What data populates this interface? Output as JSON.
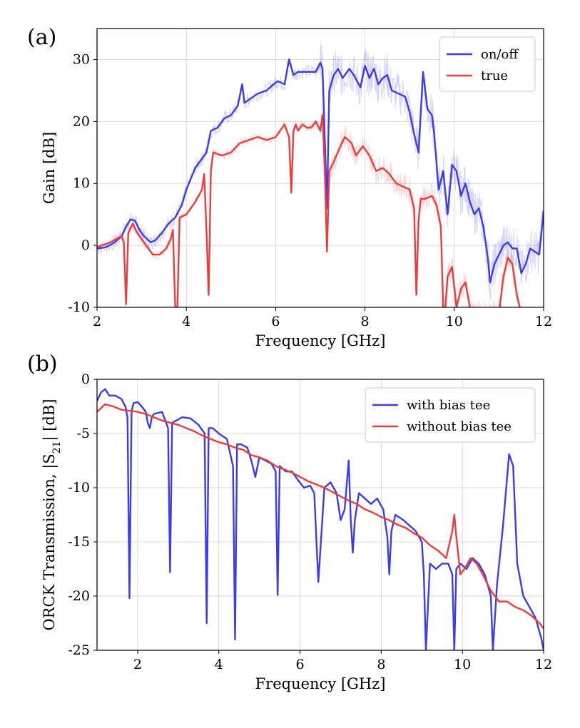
{
  "chart_data": [
    {
      "panel_label": "(a)",
      "type": "line",
      "title": "",
      "xlabel": "Frequency [GHz]",
      "ylabel": "Gain [dB]",
      "xlim": [
        2,
        12
      ],
      "ylim": [
        -10,
        35
      ],
      "xticks": [
        2,
        4,
        6,
        8,
        10,
        12
      ],
      "xtick_labels": [
        "2",
        "4",
        "6",
        "8",
        "10",
        "12"
      ],
      "yticks": [
        -10,
        0,
        10,
        20,
        30
      ],
      "ytick_labels": [
        "-10",
        "0",
        "10",
        "20",
        "30"
      ],
      "grid": true,
      "legend": "top-right",
      "series": [
        {
          "name": "on/off",
          "color": "#3b3bf0",
          "raw_noise": true,
          "x": [
            2.0,
            2.2,
            2.4,
            2.55,
            2.65,
            2.75,
            2.85,
            2.95,
            3.05,
            3.2,
            3.3,
            3.45,
            3.6,
            3.75,
            3.9,
            4.0,
            4.2,
            4.35,
            4.45,
            4.55,
            4.7,
            4.85,
            5.0,
            5.15,
            5.25,
            5.3,
            5.4,
            5.6,
            5.8,
            5.95,
            6.05,
            6.2,
            6.3,
            6.4,
            6.5,
            6.7,
            6.9,
            7.0,
            7.05,
            7.1,
            7.15,
            7.2,
            7.3,
            7.4,
            7.5,
            7.65,
            7.75,
            7.9,
            8.0,
            8.1,
            8.2,
            8.3,
            8.4,
            8.5,
            8.6,
            8.75,
            8.9,
            9.0,
            9.1,
            9.2,
            9.3,
            9.4,
            9.5,
            9.55,
            9.65,
            9.75,
            9.85,
            9.95,
            10.05,
            10.15,
            10.25,
            10.35,
            10.45,
            10.55,
            10.65,
            10.75,
            10.8,
            10.9,
            11.0,
            11.1,
            11.2,
            11.3,
            11.4,
            11.5,
            11.6,
            11.7,
            11.8,
            11.9,
            12.0
          ],
          "y": [
            -0.5,
            -0.3,
            0.5,
            1.5,
            3.0,
            4.2,
            4.0,
            2.5,
            1.5,
            0.5,
            0.8,
            2.0,
            3.5,
            4.5,
            6.5,
            9.0,
            12.5,
            14.0,
            15.0,
            18.5,
            19.0,
            20.5,
            21.0,
            22.5,
            26.0,
            23.0,
            23.5,
            24.5,
            25.0,
            26.0,
            26.5,
            26.0,
            30.0,
            27.5,
            28.0,
            28.0,
            28.0,
            29.5,
            28.5,
            17.0,
            6.0,
            25.0,
            27.5,
            28.5,
            27.0,
            28.5,
            27.5,
            25.5,
            29.0,
            27.0,
            28.5,
            26.0,
            27.0,
            27.5,
            25.0,
            24.5,
            24.0,
            21.5,
            18.0,
            15.0,
            28.0,
            22.0,
            21.0,
            18.0,
            9.0,
            12.0,
            5.0,
            13.0,
            12.0,
            8.0,
            10.0,
            7.0,
            5.0,
            6.0,
            3.0,
            -2.0,
            -6.0,
            -3.0,
            -1.5,
            0.0,
            0.5,
            -0.5,
            -0.5,
            -4.5,
            -3.0,
            -0.5,
            -1.0,
            -1.5,
            5.5
          ]
        },
        {
          "name": "true",
          "color": "#ee3b3b",
          "raw_noise": true,
          "x": [
            2.0,
            2.3,
            2.55,
            2.6,
            2.65,
            2.7,
            2.8,
            2.9,
            3.0,
            3.1,
            3.25,
            3.4,
            3.55,
            3.65,
            3.7,
            3.75,
            3.8,
            3.85,
            4.0,
            4.2,
            4.35,
            4.4,
            4.45,
            4.5,
            4.55,
            4.6,
            4.8,
            5.0,
            5.2,
            5.4,
            5.6,
            5.8,
            6.0,
            6.2,
            6.3,
            6.35,
            6.4,
            6.45,
            6.5,
            6.6,
            6.7,
            6.8,
            6.9,
            7.0,
            7.05,
            7.1,
            7.15,
            7.2,
            7.3,
            7.45,
            7.55,
            7.7,
            7.8,
            7.95,
            8.1,
            8.25,
            8.4,
            8.55,
            8.7,
            8.85,
            9.0,
            9.1,
            9.15,
            9.2,
            9.25,
            9.35,
            9.5,
            9.6,
            9.7,
            9.75,
            9.8,
            9.85,
            9.95,
            10.05,
            10.15,
            10.25,
            10.35,
            10.45,
            10.55,
            10.7,
            10.85,
            11.0,
            11.1,
            11.2,
            11.3,
            11.4,
            11.5
          ],
          "y": [
            -0.3,
            0.5,
            1.5,
            0.5,
            -9.5,
            2.0,
            3.5,
            2.0,
            1.0,
            0.0,
            -1.5,
            -1.5,
            -0.5,
            1.0,
            2.5,
            -10.0,
            -10.0,
            4.5,
            5.0,
            7.0,
            9.0,
            11.5,
            2.5,
            -8.0,
            12.0,
            15.0,
            14.5,
            15.0,
            16.5,
            17.0,
            17.5,
            17.0,
            17.5,
            19.5,
            17.5,
            8.5,
            18.5,
            19.5,
            18.5,
            19.5,
            19.0,
            19.0,
            20.0,
            18.5,
            21.0,
            12.0,
            -1.0,
            12.0,
            13.5,
            16.0,
            17.5,
            16.5,
            14.5,
            16.0,
            14.5,
            12.0,
            12.5,
            11.5,
            10.0,
            9.5,
            9.0,
            6.0,
            -8.0,
            4.0,
            7.5,
            7.5,
            8.0,
            6.5,
            3.0,
            -10.0,
            -10.0,
            -5.0,
            -3.5,
            -10.0,
            -7.0,
            -6.0,
            -10.0,
            -11.0,
            -11.0,
            -11.0,
            -11.0,
            -11.0,
            -5.0,
            -2.0,
            -3.0,
            -8.0,
            -11.0
          ]
        }
      ]
    },
    {
      "panel_label": "(b)",
      "type": "line",
      "title": "",
      "xlabel": "Frequency [GHz]",
      "ylabel": "ORCK Transmission, |S",
      "ylabel_sub": "21",
      "ylabel_end": "| [dB]",
      "xlim": [
        1,
        12
      ],
      "ylim": [
        -25,
        0
      ],
      "xticks": [
        2,
        4,
        6,
        8,
        10,
        12
      ],
      "xtick_labels": [
        "2",
        "4",
        "6",
        "8",
        "10",
        "12"
      ],
      "yticks": [
        -25,
        -20,
        -15,
        -10,
        -5,
        0
      ],
      "ytick_labels": [
        "-25",
        "-20",
        "-15",
        "-10",
        "-5",
        "0"
      ],
      "grid": true,
      "legend": "top-right",
      "series": [
        {
          "name": "with bias tee",
          "color": "#3b3bf0",
          "x": [
            1.0,
            1.1,
            1.2,
            1.3,
            1.45,
            1.6,
            1.7,
            1.75,
            1.8,
            1.85,
            1.9,
            2.0,
            2.1,
            2.2,
            2.25,
            2.3,
            2.35,
            2.4,
            2.6,
            2.75,
            2.8,
            2.85,
            2.95,
            3.1,
            3.3,
            3.5,
            3.65,
            3.7,
            3.75,
            3.85,
            4.0,
            4.2,
            4.35,
            4.4,
            4.45,
            4.55,
            4.7,
            4.8,
            4.9,
            5.0,
            5.15,
            5.3,
            5.4,
            5.45,
            5.5,
            5.65,
            5.8,
            5.95,
            6.1,
            6.25,
            6.35,
            6.45,
            6.6,
            6.75,
            6.9,
            7.0,
            7.1,
            7.2,
            7.25,
            7.3,
            7.35,
            7.45,
            7.6,
            7.75,
            7.9,
            8.05,
            8.15,
            8.2,
            8.25,
            8.35,
            8.55,
            8.7,
            8.85,
            9.0,
            9.05,
            9.1,
            9.2,
            9.35,
            9.5,
            9.65,
            9.75,
            9.8,
            9.85,
            9.95,
            10.1,
            10.25,
            10.4,
            10.55,
            10.7,
            10.75,
            10.85,
            11.0,
            11.15,
            11.25,
            11.35,
            11.5,
            11.65,
            11.8,
            11.95,
            12.0
          ],
          "y": [
            -2.0,
            -1.2,
            -0.9,
            -1.5,
            -1.5,
            -1.8,
            -2.5,
            -3.5,
            -20.2,
            -3.0,
            -2.2,
            -2.1,
            -2.5,
            -3.0,
            -4.0,
            -4.5,
            -3.5,
            -3.2,
            -3.0,
            -4.5,
            -17.8,
            -4.0,
            -3.8,
            -3.5,
            -3.6,
            -4.2,
            -5.0,
            -22.5,
            -4.5,
            -4.5,
            -5.0,
            -5.5,
            -8.0,
            -24.0,
            -6.0,
            -6.0,
            -6.3,
            -7.5,
            -9.0,
            -7.2,
            -7.5,
            -7.8,
            -8.5,
            -19.9,
            -8.0,
            -8.5,
            -8.5,
            -9.3,
            -10.0,
            -9.8,
            -10.5,
            -18.7,
            -10.0,
            -9.5,
            -10.5,
            -13.0,
            -12.0,
            -7.5,
            -13.0,
            -16.0,
            -13.0,
            -10.5,
            -11.0,
            -11.5,
            -11.0,
            -12.0,
            -14.5,
            -18.0,
            -14.0,
            -12.5,
            -13.0,
            -13.5,
            -14.0,
            -15.0,
            -18.0,
            -25.0,
            -17.0,
            -17.5,
            -17.0,
            -17.0,
            -18.0,
            -25.0,
            -17.5,
            -17.0,
            -17.5,
            -16.5,
            -17.0,
            -18.0,
            -20.0,
            -25.0,
            -19.0,
            -13.5,
            -6.9,
            -8.0,
            -17.0,
            -20.0,
            -21.0,
            -22.0,
            -24.0,
            -25.0
          ]
        },
        {
          "name": "without bias tee",
          "color": "#ee3b3b",
          "x": [
            1.0,
            1.2,
            1.4,
            1.6,
            1.8,
            2.0,
            2.2,
            2.4,
            2.6,
            2.8,
            3.0,
            3.2,
            3.4,
            3.6,
            3.8,
            4.0,
            4.2,
            4.4,
            4.6,
            4.8,
            5.0,
            5.2,
            5.4,
            5.6,
            5.8,
            6.0,
            6.2,
            6.4,
            6.6,
            6.8,
            7.0,
            7.2,
            7.4,
            7.6,
            7.8,
            8.0,
            8.2,
            8.4,
            8.6,
            8.8,
            9.0,
            9.2,
            9.4,
            9.6,
            9.75,
            9.8,
            9.85,
            9.95,
            10.05,
            10.2,
            10.35,
            10.5,
            10.7,
            10.9,
            11.1,
            11.3,
            11.5,
            11.7,
            11.9,
            12.0
          ],
          "y": [
            -3.0,
            -2.3,
            -2.5,
            -2.8,
            -2.9,
            -3.0,
            -3.2,
            -3.5,
            -3.8,
            -4.0,
            -4.2,
            -4.5,
            -4.8,
            -5.2,
            -5.5,
            -5.8,
            -6.0,
            -6.3,
            -6.5,
            -7.0,
            -7.2,
            -7.5,
            -8.0,
            -8.3,
            -8.6,
            -9.0,
            -9.4,
            -9.7,
            -10.0,
            -10.4,
            -10.8,
            -11.2,
            -11.5,
            -12.0,
            -12.3,
            -12.7,
            -13.0,
            -13.4,
            -13.7,
            -14.2,
            -14.6,
            -15.3,
            -15.8,
            -16.5,
            -14.0,
            -12.5,
            -14.5,
            -18.0,
            -17.5,
            -16.5,
            -17.0,
            -18.0,
            -19.5,
            -20.5,
            -20.5,
            -21.0,
            -21.3,
            -21.8,
            -22.5,
            -23.0
          ]
        }
      ]
    }
  ]
}
